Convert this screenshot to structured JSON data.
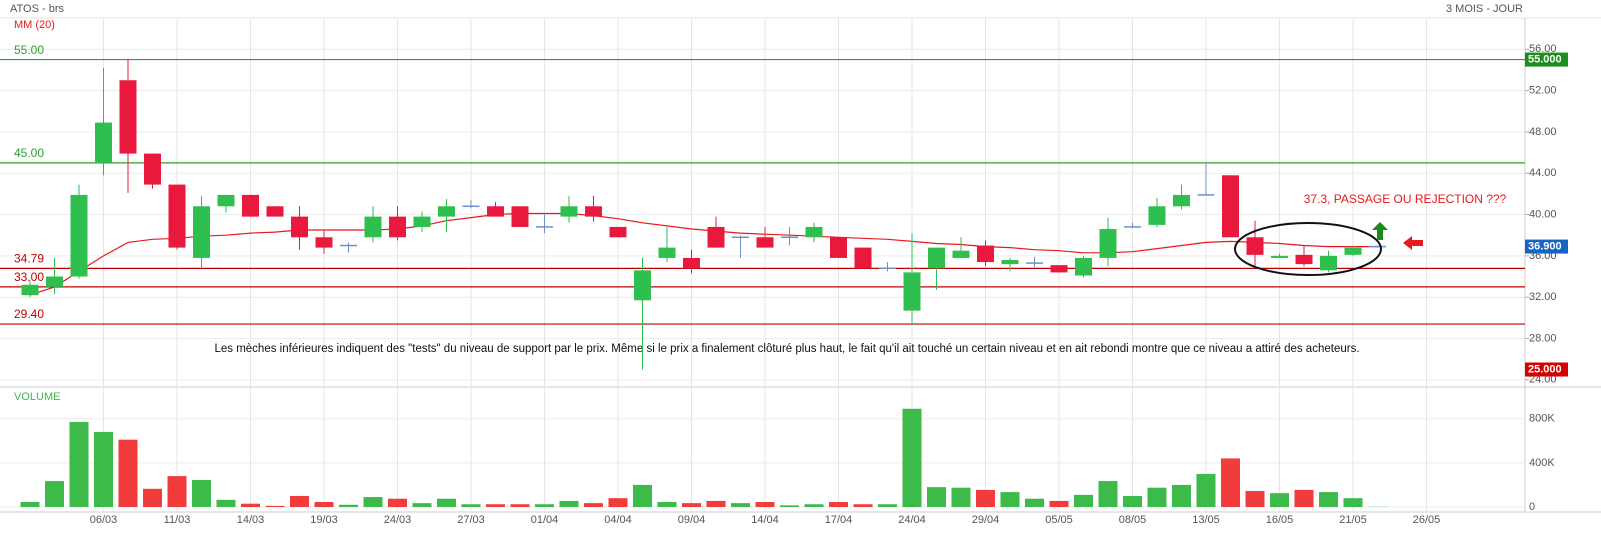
{
  "chart_data": [
    {
      "type": "candlestick",
      "title": "ATOS - brs",
      "subtitle": "3 MOIS - JOUR",
      "categories": [
        null,
        null,
        null,
        "06/03",
        null,
        null,
        "11/03",
        null,
        null,
        "14/03",
        null,
        null,
        "19/03",
        null,
        null,
        "24/03",
        null,
        null,
        "27/03",
        null,
        null,
        "01/04",
        null,
        null,
        "04/04",
        null,
        null,
        "09/04",
        null,
        null,
        "14/04",
        null,
        null,
        "17/04",
        null,
        null,
        "24/04",
        null,
        null,
        "29/04",
        null,
        null,
        "05/05",
        null,
        null,
        "08/05",
        null,
        null,
        "13/05",
        null,
        null,
        "16/05",
        null,
        null,
        "21/05",
        null,
        null,
        "26/05"
      ],
      "open": [
        32.2,
        33.0,
        34.0,
        45.0,
        53.0,
        45.9,
        42.9,
        35.8,
        40.8,
        41.9,
        40.8,
        39.8,
        37.8,
        37.0,
        37.8,
        39.8,
        38.8,
        39.8,
        40.8,
        40.8,
        40.8,
        38.8,
        39.8,
        40.8,
        38.8,
        31.7,
        35.8,
        35.8,
        38.8,
        37.8,
        37.8,
        37.8,
        37.8,
        37.8,
        36.8,
        34.8,
        30.7,
        34.8,
        35.8,
        37.0,
        35.2,
        35.3,
        35.1,
        34.1,
        35.8,
        38.8,
        39.0,
        40.8,
        41.9,
        43.8,
        37.8,
        35.8,
        36.1,
        34.6,
        36.1,
        36.9,
        null,
        null
      ],
      "high": [
        33.6,
        35.8,
        42.9,
        54.2,
        55.0,
        45.9,
        42.9,
        41.8,
        41.9,
        41.9,
        40.8,
        40.8,
        38.5,
        37.3,
        40.8,
        40.8,
        40.3,
        41.5,
        41.4,
        41.2,
        40.8,
        40.0,
        41.8,
        41.8,
        38.8,
        35.8,
        38.8,
        36.6,
        39.8,
        38.0,
        38.8,
        38.8,
        39.2,
        37.8,
        36.8,
        35.4,
        38.2,
        36.8,
        37.8,
        37.5,
        35.8,
        35.9,
        35.1,
        36.0,
        39.7,
        39.2,
        41.6,
        42.9,
        44.9,
        43.8,
        39.4,
        36.2,
        37.0,
        36.5,
        37.0,
        37.0,
        null,
        null
      ],
      "low": [
        32.0,
        32.3,
        33.8,
        43.8,
        42.1,
        42.5,
        36.6,
        34.9,
        40.2,
        39.8,
        39.8,
        36.6,
        36.2,
        36.3,
        37.3,
        37.5,
        38.3,
        38.3,
        40.6,
        39.8,
        38.8,
        38.2,
        39.2,
        39.3,
        37.8,
        25.0,
        35.4,
        34.3,
        36.8,
        35.8,
        36.8,
        37.0,
        37.3,
        35.8,
        34.8,
        34.5,
        29.3,
        32.7,
        35.8,
        35.0,
        34.5,
        34.9,
        34.4,
        33.9,
        35.0,
        38.7,
        38.8,
        40.5,
        41.9,
        37.8,
        35.0,
        35.8,
        35.0,
        34.4,
        36.0,
        36.8,
        null,
        null
      ],
      "close": [
        33.2,
        34.0,
        41.9,
        48.9,
        45.9,
        42.9,
        36.8,
        40.8,
        41.9,
        39.8,
        39.8,
        37.8,
        36.8,
        37.0,
        39.8,
        37.8,
        39.8,
        40.8,
        40.8,
        39.8,
        38.8,
        38.8,
        40.8,
        39.8,
        37.8,
        34.6,
        36.8,
        34.8,
        36.8,
        37.8,
        36.8,
        37.8,
        38.8,
        35.8,
        34.8,
        34.8,
        34.4,
        36.8,
        36.5,
        35.4,
        35.6,
        35.3,
        34.4,
        35.8,
        38.6,
        38.8,
        40.8,
        41.9,
        41.9,
        37.8,
        36.1,
        36.0,
        35.2,
        36.0,
        36.8,
        36.9,
        null,
        null
      ],
      "up_color": "#2fbf4f",
      "down_color": "#e8193c",
      "doji_color": "#6f8fc8",
      "ma": {
        "name": "MM (20)",
        "color": "#e8191e",
        "values": [
          32.2,
          33.0,
          34.5,
          36.0,
          37.3,
          37.6,
          37.7,
          37.9,
          38.0,
          38.2,
          38.3,
          38.5,
          38.5,
          38.5,
          38.5,
          38.6,
          38.9,
          39.4,
          39.7,
          40.0,
          40.1,
          40.1,
          40.1,
          39.9,
          39.6,
          39.2,
          38.9,
          38.6,
          38.4,
          38.2,
          38.1,
          38.0,
          37.9,
          37.8,
          37.7,
          37.6,
          37.4,
          37.2,
          37.1,
          36.9,
          36.8,
          36.6,
          36.5,
          36.3,
          36.3,
          36.4,
          36.7,
          37.0,
          37.3,
          37.4,
          37.3,
          37.2,
          37.0,
          36.9,
          36.9,
          36.9,
          null,
          null
        ]
      },
      "hlines": [
        {
          "value": 55,
          "label": "55.00",
          "color": "#2ca02c"
        },
        {
          "value": 45,
          "label": "45.00",
          "color": "#2ca02c"
        },
        {
          "value": 34.79,
          "label": "34.79",
          "color": "#c00000"
        },
        {
          "value": 33,
          "label": "33.00",
          "color": "#c00000"
        },
        {
          "value": 29.4,
          "label": "29.40",
          "color": "#c00000"
        }
      ],
      "price_markers": [
        {
          "value": 55,
          "label": "55.000",
          "color": "#1a8f1a"
        },
        {
          "value": 36.9,
          "label": "36.900",
          "color": "#1565c0"
        },
        {
          "value": 25,
          "label": "25.000",
          "color": "#d50000"
        }
      ],
      "annotations": [
        "Les mèches inférieures indiquent des \"tests\" du niveau de support par le prix. Même si le prix a finalement clôturé plus haut, le fait qu'il ait touché un certain niveau et en ait rebondi montre que ce niveau a attiré des acheteurs.",
        "37.3, PASSAGE OU REJECTION ???"
      ],
      "ylim": [
        23.5,
        59.8
      ],
      "yticks": [
        {
          "value": 24,
          "label": "24.00"
        },
        {
          "value": 28,
          "label": "28.00"
        },
        {
          "value": 32,
          "label": "32.00"
        },
        {
          "value": 36,
          "label": "36.00"
        },
        {
          "value": 40,
          "label": "40.00"
        },
        {
          "value": 44,
          "label": "44.00"
        },
        {
          "value": 48,
          "label": "48.00"
        },
        {
          "value": 52,
          "label": "52.00"
        },
        {
          "value": 56,
          "label": "56.00"
        }
      ],
      "grid": true
    },
    {
      "type": "bar",
      "title": "VOLUME",
      "values": [
        45,
        235,
        770,
        680,
        610,
        165,
        280,
        245,
        65,
        30,
        10,
        100,
        45,
        20,
        90,
        75,
        35,
        75,
        25,
        25,
        25,
        25,
        55,
        35,
        80,
        200,
        45,
        35,
        55,
        35,
        45,
        15,
        25,
        45,
        25,
        25,
        890,
        180,
        175,
        155,
        135,
        75,
        55,
        110,
        235,
        100,
        175,
        200,
        300,
        440,
        145,
        125,
        155,
        135,
        80,
        2,
        null,
        null
      ],
      "up_color": "#3cba4a",
      "down_color": "#f23b3b",
      "ylim": [
        0,
        1060
      ],
      "yticks": [
        0,
        {
          "value": 400,
          "label": "400K"
        },
        {
          "value": 800,
          "label": "800K"
        }
      ],
      "grid": true
    }
  ]
}
